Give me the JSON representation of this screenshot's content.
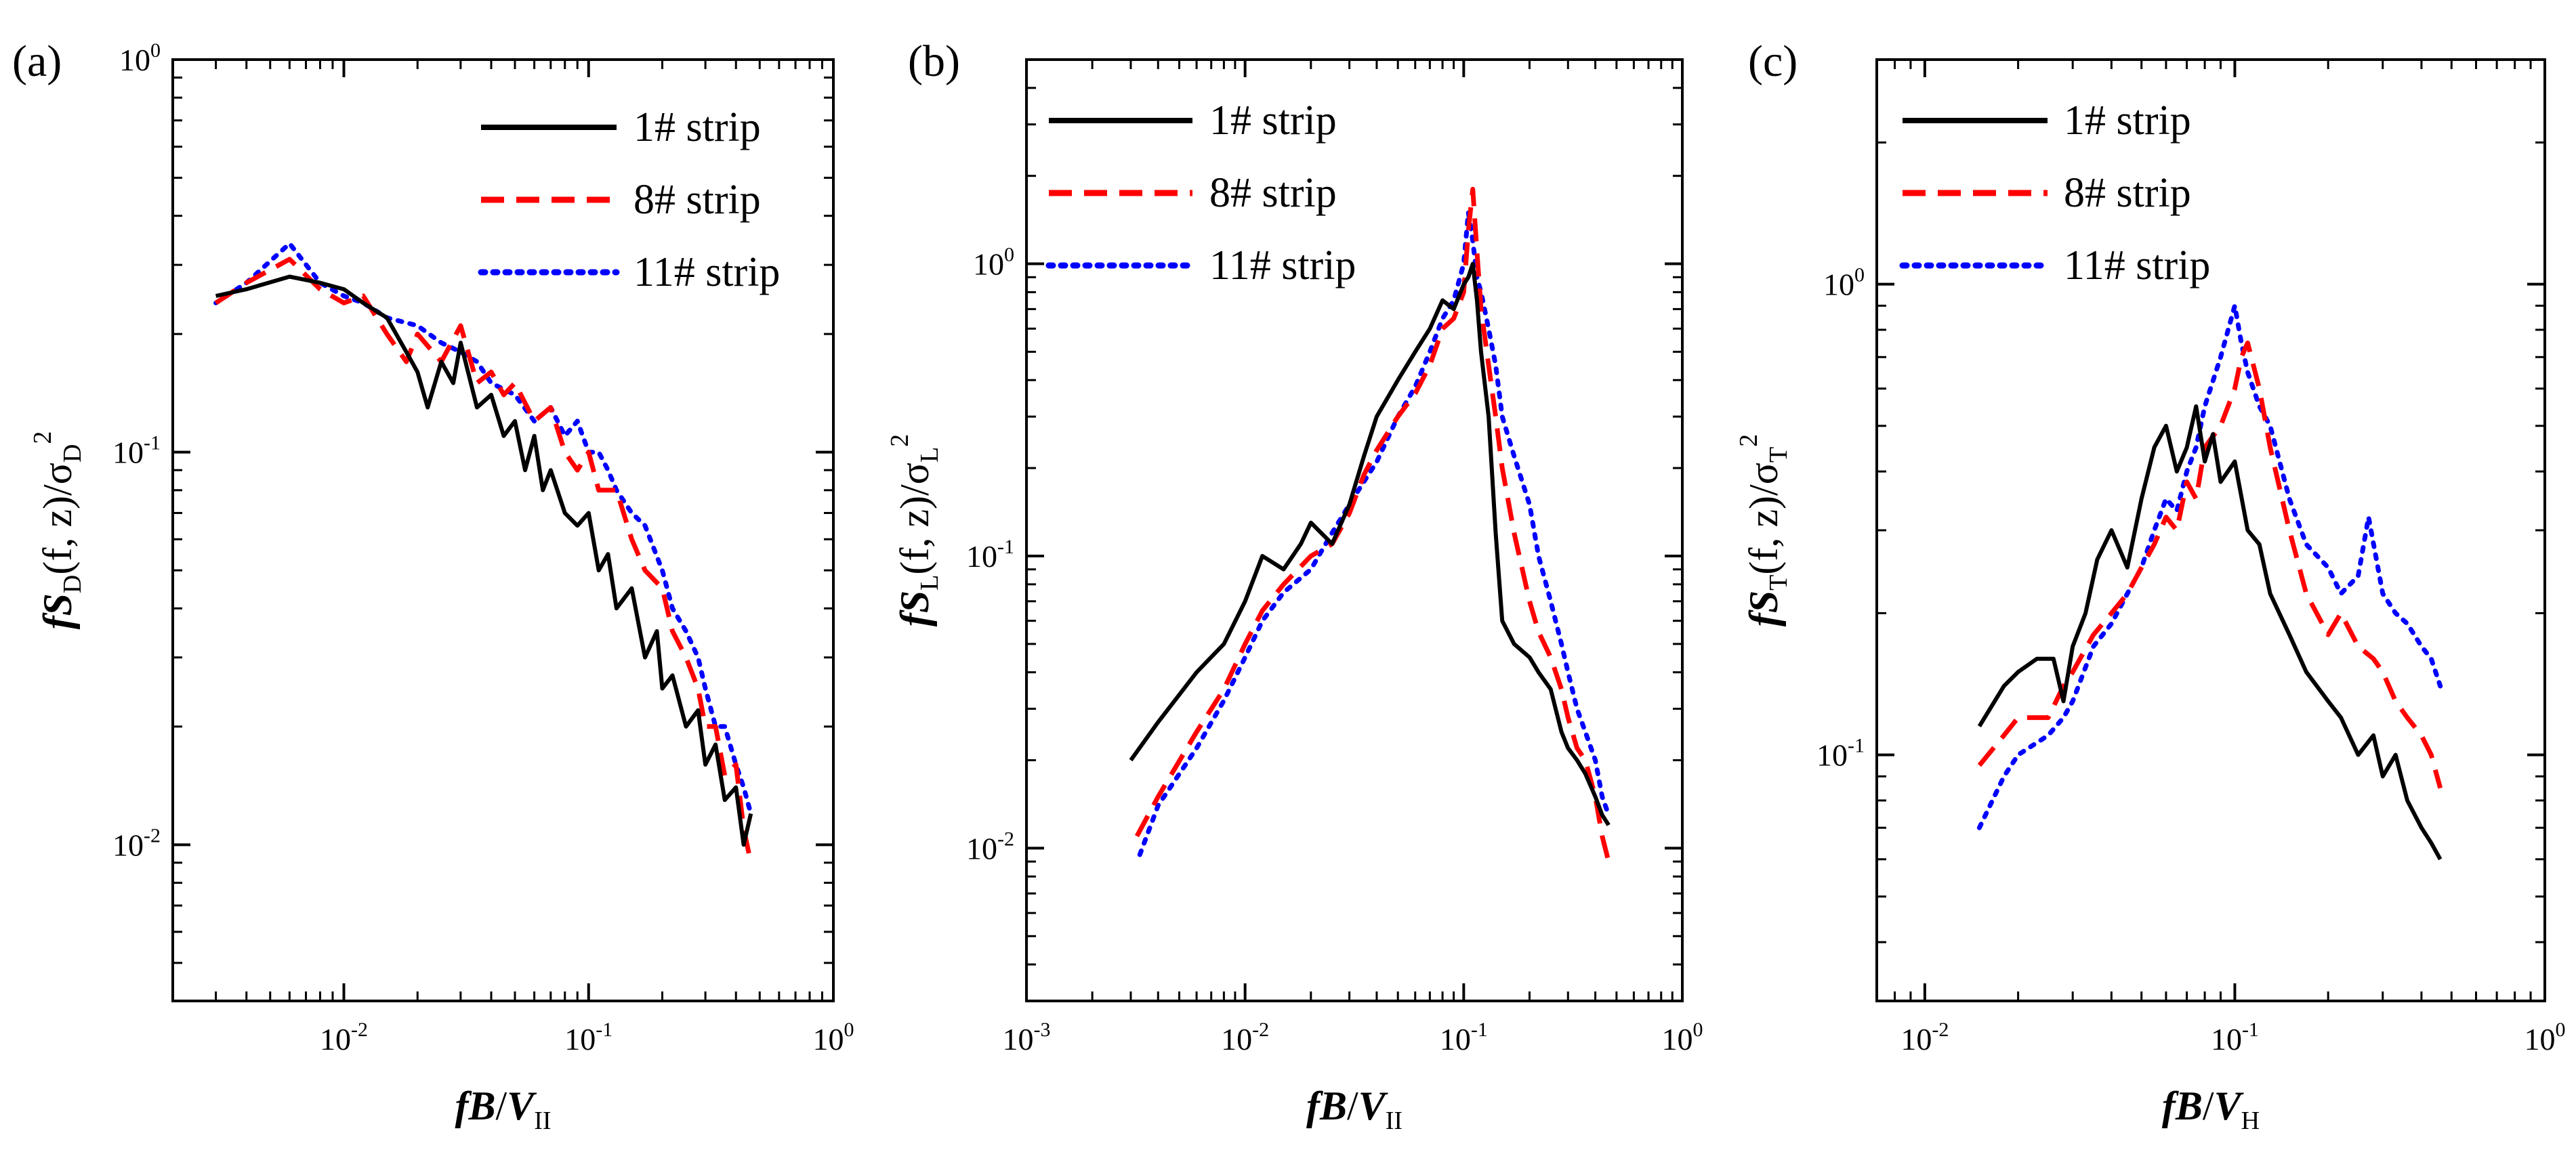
{
  "chart_data": [
    {
      "id": "a",
      "panel_label": "(a)",
      "type": "line",
      "x_scale": "log",
      "y_scale": "log",
      "xlim": [
        0.002,
        1
      ],
      "ylim": [
        0.004,
        1
      ],
      "x_ticks": [
        {
          "base": "10",
          "exp": "-2",
          "value": 0.01
        },
        {
          "base": "10",
          "exp": "-1",
          "value": 0.1
        },
        {
          "base": "10",
          "exp": "0",
          "value": 1
        }
      ],
      "y_ticks": [
        {
          "base": "10",
          "exp": "-2",
          "value": 0.01
        },
        {
          "base": "10",
          "exp": "-1",
          "value": 0.1
        },
        {
          "base": "10",
          "exp": "0",
          "value": 1
        }
      ],
      "xlabel": {
        "f": "f",
        "B": "B",
        "slash": "/",
        "V": "V",
        "sub": "II"
      },
      "ylabel": {
        "f": "f",
        "S": "S",
        "sub": "D",
        "args": "(f, z)/σ",
        "sigma_sub": "D",
        "sup": "2"
      },
      "legend_position": "top-right",
      "series": [
        {
          "name": "1# strip",
          "color": "#000000",
          "dash": "solid",
          "x": [
            0.003,
            0.004,
            0.006,
            0.008,
            0.01,
            0.012,
            0.015,
            0.018,
            0.02,
            0.022,
            0.025,
            0.028,
            0.03,
            0.035,
            0.04,
            0.045,
            0.05,
            0.055,
            0.06,
            0.065,
            0.07,
            0.08,
            0.09,
            0.1,
            0.11,
            0.12,
            0.13,
            0.15,
            0.17,
            0.19,
            0.2,
            0.22,
            0.25,
            0.28,
            0.3,
            0.33,
            0.36,
            0.4,
            0.43,
            0.46
          ],
          "y": [
            0.25,
            0.26,
            0.28,
            0.27,
            0.26,
            0.24,
            0.22,
            0.18,
            0.16,
            0.13,
            0.17,
            0.15,
            0.19,
            0.13,
            0.14,
            0.11,
            0.12,
            0.09,
            0.11,
            0.08,
            0.09,
            0.07,
            0.065,
            0.07,
            0.05,
            0.055,
            0.04,
            0.045,
            0.03,
            0.035,
            0.025,
            0.027,
            0.02,
            0.022,
            0.016,
            0.018,
            0.013,
            0.014,
            0.01,
            0.012
          ]
        },
        {
          "name": "8# strip",
          "color": "#ff0000",
          "dash": "dashed",
          "x": [
            0.003,
            0.004,
            0.006,
            0.008,
            0.01,
            0.012,
            0.015,
            0.018,
            0.02,
            0.025,
            0.03,
            0.035,
            0.04,
            0.045,
            0.05,
            0.06,
            0.07,
            0.08,
            0.09,
            0.1,
            0.11,
            0.13,
            0.15,
            0.17,
            0.2,
            0.22,
            0.25,
            0.28,
            0.3,
            0.33,
            0.36,
            0.4,
            0.43,
            0.46
          ],
          "y": [
            0.24,
            0.27,
            0.31,
            0.26,
            0.24,
            0.25,
            0.2,
            0.17,
            0.2,
            0.17,
            0.21,
            0.15,
            0.16,
            0.14,
            0.15,
            0.12,
            0.13,
            0.1,
            0.09,
            0.1,
            0.08,
            0.08,
            0.06,
            0.05,
            0.045,
            0.035,
            0.03,
            0.025,
            0.02,
            0.02,
            0.015,
            0.016,
            0.011,
            0.009
          ]
        },
        {
          "name": "11# strip",
          "color": "#0000ff",
          "dash": "dotted",
          "x": [
            0.003,
            0.004,
            0.006,
            0.008,
            0.01,
            0.012,
            0.015,
            0.02,
            0.025,
            0.03,
            0.035,
            0.04,
            0.05,
            0.06,
            0.07,
            0.08,
            0.09,
            0.1,
            0.11,
            0.12,
            0.13,
            0.15,
            0.17,
            0.2,
            0.22,
            0.25,
            0.28,
            0.3,
            0.33,
            0.36,
            0.4,
            0.43,
            0.46
          ],
          "y": [
            0.24,
            0.27,
            0.34,
            0.27,
            0.25,
            0.24,
            0.22,
            0.21,
            0.19,
            0.18,
            0.17,
            0.15,
            0.14,
            0.12,
            0.13,
            0.11,
            0.12,
            0.1,
            0.1,
            0.09,
            0.08,
            0.07,
            0.065,
            0.05,
            0.04,
            0.035,
            0.03,
            0.025,
            0.02,
            0.02,
            0.016,
            0.014,
            0.012
          ]
        }
      ]
    },
    {
      "id": "b",
      "panel_label": "(b)",
      "type": "line",
      "x_scale": "log",
      "y_scale": "log",
      "xlim": [
        0.001,
        1
      ],
      "ylim": [
        0.003,
        5
      ],
      "x_ticks": [
        {
          "base": "10",
          "exp": "-3",
          "value": 0.001
        },
        {
          "base": "10",
          "exp": "-2",
          "value": 0.01
        },
        {
          "base": "10",
          "exp": "-1",
          "value": 0.1
        },
        {
          "base": "10",
          "exp": "0",
          "value": 1
        }
      ],
      "y_ticks": [
        {
          "base": "10",
          "exp": "-2",
          "value": 0.01
        },
        {
          "base": "10",
          "exp": "-1",
          "value": 0.1
        },
        {
          "base": "10",
          "exp": "0",
          "value": 1
        }
      ],
      "xlabel": {
        "f": "f",
        "B": "B",
        "slash": "/",
        "V": "V",
        "sub": "II"
      },
      "ylabel": {
        "f": "f",
        "S": "S",
        "sub": "L",
        "args": "(f, z)/σ",
        "sigma_sub": "L",
        "sup": "2"
      },
      "legend_position": "top-left",
      "series": [
        {
          "name": "1# strip",
          "color": "#000000",
          "dash": "solid",
          "x": [
            0.003,
            0.004,
            0.006,
            0.008,
            0.01,
            0.012,
            0.015,
            0.018,
            0.02,
            0.025,
            0.03,
            0.035,
            0.04,
            0.05,
            0.06,
            0.07,
            0.08,
            0.09,
            0.1,
            0.105,
            0.11,
            0.115,
            0.12,
            0.13,
            0.14,
            0.15,
            0.17,
            0.2,
            0.22,
            0.25,
            0.28,
            0.3,
            0.33,
            0.36,
            0.4,
            0.43,
            0.46
          ],
          "y": [
            0.02,
            0.027,
            0.04,
            0.05,
            0.07,
            0.1,
            0.09,
            0.11,
            0.13,
            0.11,
            0.15,
            0.22,
            0.3,
            0.4,
            0.5,
            0.6,
            0.75,
            0.7,
            0.85,
            0.9,
            1.0,
            0.75,
            0.5,
            0.3,
            0.12,
            0.06,
            0.05,
            0.045,
            0.04,
            0.035,
            0.025,
            0.022,
            0.02,
            0.018,
            0.015,
            0.013,
            0.012
          ]
        },
        {
          "name": "8# strip",
          "color": "#ff0000",
          "dash": "dashed",
          "x": [
            0.0032,
            0.004,
            0.006,
            0.008,
            0.01,
            0.012,
            0.015,
            0.02,
            0.025,
            0.03,
            0.035,
            0.04,
            0.05,
            0.06,
            0.07,
            0.08,
            0.09,
            0.1,
            0.105,
            0.11,
            0.115,
            0.12,
            0.13,
            0.14,
            0.15,
            0.17,
            0.2,
            0.22,
            0.25,
            0.28,
            0.3,
            0.33,
            0.36,
            0.4,
            0.43,
            0.46
          ],
          "y": [
            0.011,
            0.015,
            0.025,
            0.035,
            0.05,
            0.065,
            0.08,
            0.1,
            0.11,
            0.14,
            0.19,
            0.23,
            0.3,
            0.36,
            0.45,
            0.6,
            0.65,
            0.8,
            1.3,
            1.8,
            1.1,
            0.7,
            0.45,
            0.3,
            0.2,
            0.12,
            0.07,
            0.055,
            0.045,
            0.035,
            0.028,
            0.022,
            0.02,
            0.015,
            0.011,
            0.009
          ]
        },
        {
          "name": "11# strip",
          "color": "#0000ff",
          "dash": "dotted",
          "x": [
            0.0033,
            0.004,
            0.006,
            0.008,
            0.01,
            0.012,
            0.015,
            0.02,
            0.025,
            0.03,
            0.035,
            0.04,
            0.05,
            0.06,
            0.07,
            0.08,
            0.09,
            0.1,
            0.105,
            0.11,
            0.115,
            0.12,
            0.13,
            0.14,
            0.15,
            0.17,
            0.2,
            0.22,
            0.25,
            0.28,
            0.3,
            0.33,
            0.36,
            0.4,
            0.43,
            0.46
          ],
          "y": [
            0.0095,
            0.014,
            0.022,
            0.032,
            0.045,
            0.06,
            0.075,
            0.09,
            0.12,
            0.15,
            0.18,
            0.21,
            0.3,
            0.38,
            0.5,
            0.65,
            0.75,
            1.0,
            1.5,
            1.2,
            0.9,
            0.8,
            0.6,
            0.45,
            0.3,
            0.22,
            0.15,
            0.1,
            0.07,
            0.05,
            0.04,
            0.03,
            0.025,
            0.02,
            0.015,
            0.013
          ]
        }
      ]
    },
    {
      "id": "c",
      "panel_label": "(c)",
      "type": "line",
      "x_scale": "log",
      "y_scale": "log",
      "xlim": [
        0.007,
        1
      ],
      "ylim": [
        0.03,
        3
      ],
      "x_ticks": [
        {
          "base": "10",
          "exp": "-2",
          "value": 0.01
        },
        {
          "base": "10",
          "exp": "-1",
          "value": 0.1
        },
        {
          "base": "10",
          "exp": "0",
          "value": 1
        }
      ],
      "y_ticks": [
        {
          "base": "10",
          "exp": "-1",
          "value": 0.1
        },
        {
          "base": "10",
          "exp": "0",
          "value": 1
        }
      ],
      "xlabel": {
        "f": "f",
        "B": "B",
        "slash": "/",
        "V": "V",
        "sub": "H"
      },
      "ylabel": {
        "f": "f",
        "S": "S",
        "sub": "T",
        "args": "(f, z)/σ",
        "sigma_sub": "T",
        "sup": "2"
      },
      "legend_position": "top-left",
      "series": [
        {
          "name": "1# strip",
          "color": "#000000",
          "dash": "solid",
          "x": [
            0.015,
            0.018,
            0.02,
            0.023,
            0.026,
            0.028,
            0.03,
            0.033,
            0.036,
            0.04,
            0.045,
            0.05,
            0.055,
            0.06,
            0.065,
            0.07,
            0.075,
            0.08,
            0.085,
            0.09,
            0.1,
            0.11,
            0.12,
            0.13,
            0.15,
            0.17,
            0.2,
            0.22,
            0.25,
            0.28,
            0.3,
            0.33,
            0.36,
            0.4,
            0.43,
            0.46
          ],
          "y": [
            0.115,
            0.14,
            0.15,
            0.16,
            0.16,
            0.13,
            0.17,
            0.2,
            0.26,
            0.3,
            0.25,
            0.35,
            0.45,
            0.5,
            0.4,
            0.45,
            0.55,
            0.42,
            0.48,
            0.38,
            0.42,
            0.3,
            0.28,
            0.22,
            0.18,
            0.15,
            0.13,
            0.12,
            0.1,
            0.11,
            0.09,
            0.1,
            0.08,
            0.07,
            0.065,
            0.06
          ]
        },
        {
          "name": "8# strip",
          "color": "#ff0000",
          "dash": "dashed",
          "x": [
            0.015,
            0.018,
            0.02,
            0.025,
            0.028,
            0.03,
            0.035,
            0.04,
            0.045,
            0.05,
            0.055,
            0.06,
            0.065,
            0.07,
            0.075,
            0.08,
            0.09,
            0.1,
            0.105,
            0.11,
            0.12,
            0.13,
            0.15,
            0.17,
            0.2,
            0.22,
            0.25,
            0.28,
            0.3,
            0.33,
            0.36,
            0.4,
            0.43,
            0.46
          ],
          "y": [
            0.095,
            0.11,
            0.12,
            0.12,
            0.14,
            0.15,
            0.18,
            0.2,
            0.22,
            0.25,
            0.28,
            0.32,
            0.3,
            0.38,
            0.35,
            0.45,
            0.5,
            0.6,
            0.7,
            0.75,
            0.6,
            0.45,
            0.3,
            0.22,
            0.18,
            0.2,
            0.17,
            0.16,
            0.15,
            0.13,
            0.12,
            0.11,
            0.1,
            0.085
          ]
        },
        {
          "name": "11# strip",
          "color": "#0000ff",
          "dash": "dotted",
          "x": [
            0.015,
            0.018,
            0.02,
            0.025,
            0.028,
            0.03,
            0.035,
            0.04,
            0.045,
            0.05,
            0.055,
            0.06,
            0.065,
            0.07,
            0.075,
            0.08,
            0.09,
            0.1,
            0.105,
            0.11,
            0.12,
            0.13,
            0.15,
            0.17,
            0.2,
            0.22,
            0.25,
            0.27,
            0.3,
            0.33,
            0.36,
            0.4,
            0.43,
            0.46
          ],
          "y": [
            0.07,
            0.09,
            0.1,
            0.11,
            0.12,
            0.13,
            0.17,
            0.19,
            0.22,
            0.25,
            0.3,
            0.35,
            0.33,
            0.4,
            0.45,
            0.55,
            0.7,
            0.9,
            0.75,
            0.65,
            0.55,
            0.5,
            0.35,
            0.28,
            0.25,
            0.22,
            0.24,
            0.32,
            0.22,
            0.2,
            0.19,
            0.17,
            0.16,
            0.14
          ]
        }
      ]
    }
  ]
}
